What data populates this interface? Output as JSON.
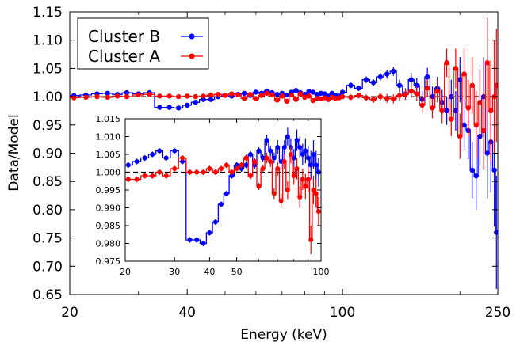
{
  "chart_data": [
    {
      "id": "main",
      "type": "line",
      "title": "",
      "xlabel": "Energy (keV)",
      "ylabel": "Data/Model",
      "xscale": "log",
      "xlim": [
        20,
        250
      ],
      "ylim": [
        0.65,
        1.15
      ],
      "xticks": [
        20,
        40,
        100,
        250
      ],
      "xtick_labels": [
        "20",
        "40",
        "100",
        "250"
      ],
      "yticks": [
        0.65,
        0.7,
        0.75,
        0.8,
        0.85,
        0.9,
        0.95,
        1.0,
        1.05,
        1.1,
        1.15
      ],
      "ytick_labels": [
        "0.65",
        "0.70",
        "0.75",
        "0.80",
        "0.85",
        "0.90",
        "0.95",
        "1.00",
        "1.05",
        "1.10",
        "1.15"
      ],
      "reference_line": 1.0,
      "grid": false,
      "legend_position": "top-left",
      "series": [
        {
          "name": "Cluster B",
          "color": "#0000ff",
          "x": [
            20.5,
            22,
            23.5,
            25,
            26.5,
            28,
            30,
            32,
            34,
            36,
            38,
            40,
            42,
            44,
            46,
            48,
            50,
            52,
            54,
            56,
            58,
            60,
            62,
            64,
            66,
            68,
            70,
            72,
            74,
            76,
            78,
            80,
            82,
            84,
            86,
            88,
            90,
            92,
            94,
            96,
            98,
            100,
            105,
            110,
            115,
            120,
            125,
            130,
            135,
            140,
            145,
            150,
            155,
            160,
            165,
            170,
            175,
            180,
            185,
            190,
            195,
            200,
            205,
            210,
            215,
            220,
            225,
            230,
            235,
            240,
            245,
            248
          ],
          "y": [
            1.002,
            1.003,
            1.005,
            1.006,
            1.004,
            1.007,
            1.005,
            1.007,
            0.981,
            0.981,
            0.98,
            0.985,
            0.99,
            0.995,
            0.995,
            1.0,
            1.003,
            1.001,
            1.004,
            1.006,
            1.002,
            1.008,
            1.006,
            1.01,
            1.007,
            1.004,
            1.006,
            1.003,
            1.008,
            1.011,
            1.007,
            1.004,
            1.009,
            1.008,
            1.004,
            1.006,
            1.005,
            1.001,
            1.006,
            1.002,
            1.001,
            1.008,
            1.02,
            1.015,
            1.03,
            1.025,
            1.035,
            1.04,
            1.045,
            1.02,
            1.005,
            1.03,
            1.02,
            0.995,
            1.035,
            1.0,
            1.015,
            0.99,
            0.975,
            1.0,
            0.975,
            1.03,
            0.95,
            0.94,
            0.87,
            0.86,
            0.93,
            1.0,
            0.9,
            0.92,
            0.87,
            0.76
          ],
          "yerr": [
            0.002,
            0.002,
            0.002,
            0.002,
            0.002,
            0.002,
            0.002,
            0.002,
            0.002,
            0.002,
            0.002,
            0.002,
            0.002,
            0.002,
            0.002,
            0.002,
            0.002,
            0.003,
            0.003,
            0.003,
            0.003,
            0.003,
            0.003,
            0.003,
            0.003,
            0.003,
            0.003,
            0.003,
            0.003,
            0.003,
            0.003,
            0.003,
            0.003,
            0.003,
            0.003,
            0.003,
            0.003,
            0.003,
            0.003,
            0.003,
            0.003,
            0.004,
            0.005,
            0.005,
            0.006,
            0.006,
            0.007,
            0.008,
            0.008,
            0.01,
            0.01,
            0.012,
            0.013,
            0.015,
            0.016,
            0.018,
            0.02,
            0.022,
            0.025,
            0.03,
            0.035,
            0.04,
            0.045,
            0.05,
            0.05,
            0.06,
            0.06,
            0.07,
            0.08,
            0.09,
            0.1,
            0.1
          ]
        },
        {
          "name": "Cluster A",
          "color": "#ff0000",
          "x": [
            20.5,
            22,
            23.5,
            25,
            26.5,
            28,
            30,
            32,
            34,
            36,
            38,
            40,
            42,
            44,
            46,
            48,
            50,
            52,
            54,
            56,
            58,
            60,
            62,
            64,
            66,
            68,
            70,
            72,
            74,
            76,
            78,
            80,
            82,
            84,
            86,
            88,
            90,
            92,
            94,
            96,
            98,
            100,
            105,
            110,
            115,
            120,
            125,
            130,
            135,
            140,
            145,
            150,
            155,
            160,
            165,
            170,
            175,
            180,
            185,
            190,
            195,
            200,
            205,
            210,
            215,
            220,
            225,
            230,
            235,
            240,
            245,
            248
          ],
          "y": [
            0.998,
            0.999,
            1.0,
            0.999,
            1.001,
            1.0,
            1.003,
            1.004,
            1.001,
            1.001,
            1.0,
            1.001,
            1.0,
            1.001,
            1.003,
            1.004,
            1.002,
            1.005,
            1.003,
            0.997,
            1.004,
            0.996,
            1.002,
            1.006,
            1.003,
            0.994,
            1.001,
            0.992,
            1.003,
            0.995,
            1.005,
            0.999,
            1.001,
            0.993,
            0.997,
            0.996,
            0.998,
            0.995,
            0.999,
            0.997,
            0.998,
            1.0,
            0.999,
            1.002,
            0.998,
            0.995,
            1.0,
            0.997,
            0.996,
            1.002,
            1.004,
            1.01,
            1.005,
            0.985,
            1.015,
            0.98,
            1.01,
            0.975,
            1.06,
            0.96,
            1.05,
            0.93,
            1.04,
            0.98,
            1.02,
            0.95,
            0.99,
            0.94,
            1.06,
            0.975,
            1.0,
            1.02
          ],
          "yerr": [
            0.002,
            0.002,
            0.002,
            0.002,
            0.002,
            0.002,
            0.002,
            0.002,
            0.002,
            0.002,
            0.002,
            0.002,
            0.002,
            0.002,
            0.002,
            0.002,
            0.002,
            0.003,
            0.003,
            0.003,
            0.003,
            0.003,
            0.003,
            0.003,
            0.003,
            0.003,
            0.003,
            0.003,
            0.003,
            0.003,
            0.003,
            0.003,
            0.003,
            0.003,
            0.003,
            0.003,
            0.003,
            0.003,
            0.003,
            0.003,
            0.003,
            0.004,
            0.005,
            0.005,
            0.006,
            0.006,
            0.007,
            0.008,
            0.008,
            0.01,
            0.01,
            0.012,
            0.013,
            0.015,
            0.016,
            0.018,
            0.02,
            0.022,
            0.025,
            0.03,
            0.035,
            0.04,
            0.045,
            0.05,
            0.05,
            0.06,
            0.06,
            0.07,
            0.08,
            0.09,
            0.1,
            0.1
          ]
        }
      ]
    },
    {
      "id": "inset",
      "type": "line",
      "xscale": "log",
      "xlim": [
        20,
        100
      ],
      "ylim": [
        0.975,
        1.015
      ],
      "xticks": [
        20,
        30,
        40,
        50,
        100
      ],
      "xtick_labels": [
        "20",
        "30",
        "40",
        "50",
        "100"
      ],
      "yticks": [
        0.975,
        0.98,
        0.985,
        0.99,
        0.995,
        1.0,
        1.005,
        1.01,
        1.015
      ],
      "ytick_labels": [
        "0.975",
        "0.980",
        "0.985",
        "0.990",
        "0.995",
        "1.000",
        "1.005",
        "1.010",
        "1.015"
      ],
      "reference_line": 1.0,
      "series": [
        {
          "name": "Cluster B",
          "color": "#0000ff",
          "x": [
            20.5,
            22,
            23.5,
            25,
            26.5,
            28,
            30,
            32,
            34,
            36,
            38,
            40,
            42,
            44,
            46,
            48,
            50,
            52,
            54,
            56,
            58,
            60,
            62,
            64,
            66,
            68,
            70,
            72,
            74,
            76,
            78,
            80,
            82,
            84,
            86,
            88,
            90,
            92,
            94,
            96,
            98
          ],
          "y": [
            1.002,
            1.003,
            1.004,
            1.005,
            1.006,
            1.004,
            1.006,
            1.003,
            0.981,
            0.981,
            0.98,
            0.983,
            0.986,
            0.991,
            0.994,
            0.999,
            1.002,
            1.001,
            1.002,
            1.005,
            1.002,
            1.006,
            1.004,
            1.009,
            1.006,
            1.004,
            1.007,
            1.003,
            1.007,
            1.01,
            1.007,
            1.004,
            1.009,
            1.007,
            1.005,
            1.006,
            1.004,
            1.002,
            1.005,
            1.002,
            1.0
          ],
          "yerr": [
            0.0008,
            0.0008,
            0.0008,
            0.0008,
            0.0008,
            0.0008,
            0.0008,
            0.0008,
            0.0008,
            0.0008,
            0.0008,
            0.0008,
            0.0008,
            0.0008,
            0.0008,
            0.0008,
            0.0008,
            0.0009,
            0.0009,
            0.001,
            0.001,
            0.001,
            0.001,
            0.0015,
            0.0015,
            0.0015,
            0.002,
            0.002,
            0.002,
            0.0025,
            0.0025,
            0.0025,
            0.003,
            0.003,
            0.003,
            0.0035,
            0.0035,
            0.004,
            0.004,
            0.004,
            0.004
          ]
        },
        {
          "name": "Cluster A",
          "color": "#ff0000",
          "x": [
            20.5,
            22,
            23.5,
            25,
            26.5,
            28,
            30,
            32,
            34,
            36,
            38,
            40,
            42,
            44,
            46,
            48,
            50,
            52,
            54,
            56,
            58,
            60,
            62,
            64,
            66,
            68,
            70,
            72,
            74,
            76,
            78,
            80,
            82,
            84,
            86,
            88,
            90,
            92,
            94,
            96,
            98
          ],
          "y": [
            0.998,
            0.998,
            0.999,
            0.999,
            1.0,
            0.999,
            1.001,
            1.004,
            1.0,
            1.0,
            1.0,
            1.001,
            1.0,
            1.001,
            1.002,
            1.0,
            1.001,
            1.002,
            1.004,
            0.999,
            1.003,
            0.996,
            1.001,
            1.004,
            1.003,
            0.994,
            1.001,
            0.992,
            1.003,
            0.995,
            1.005,
            0.999,
            1.001,
            0.993,
            0.998,
            0.996,
            0.998,
            0.981,
            0.995,
            0.994,
            0.989
          ],
          "yerr": [
            0.0008,
            0.0008,
            0.0008,
            0.0008,
            0.0008,
            0.0008,
            0.0008,
            0.0008,
            0.0008,
            0.0008,
            0.0008,
            0.0008,
            0.0008,
            0.0008,
            0.0008,
            0.0008,
            0.0008,
            0.0009,
            0.0009,
            0.001,
            0.001,
            0.001,
            0.001,
            0.0015,
            0.0015,
            0.0015,
            0.002,
            0.002,
            0.002,
            0.0025,
            0.0025,
            0.0025,
            0.003,
            0.003,
            0.003,
            0.0035,
            0.0035,
            0.004,
            0.004,
            0.004,
            0.004
          ]
        }
      ]
    }
  ]
}
